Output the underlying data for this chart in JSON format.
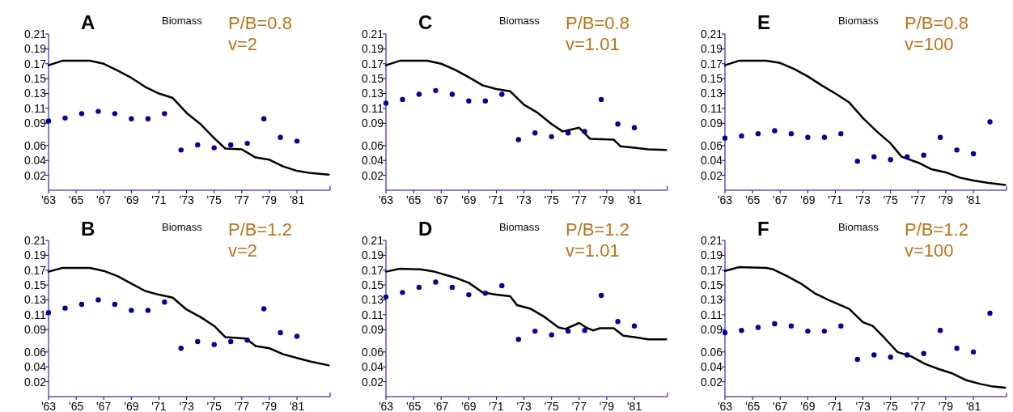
{
  "chart_data": [
    {
      "type": "line",
      "title": "A",
      "annotations": [
        "Biomass",
        "P/B=0.8",
        "v=2"
      ],
      "xlim": [
        1963,
        1983.4
      ],
      "ylim": [
        0,
        0.21
      ],
      "xticks": [
        {
          "value": 1963,
          "label": "'63"
        },
        {
          "value": 1965,
          "label": "'65"
        },
        {
          "value": 1967,
          "label": "'67"
        },
        {
          "value": 1969,
          "label": "'69"
        },
        {
          "value": 1971,
          "label": "'71"
        },
        {
          "value": 1973,
          "label": "'73"
        },
        {
          "value": 1975,
          "label": "'75"
        },
        {
          "value": 1977,
          "label": "'77"
        },
        {
          "value": 1979,
          "label": "'79"
        },
        {
          "value": 1981,
          "label": "'81"
        }
      ],
      "yticks": [
        0.02,
        0.04,
        0.06,
        0.09,
        0.11,
        0.13,
        0.15,
        0.17,
        0.19,
        0.21
      ],
      "series": [
        {
          "type": "line",
          "color": "#000000",
          "x": [
            1963,
            1964,
            1966,
            1967,
            1968,
            1969,
            1970,
            1971,
            1972,
            1973,
            1974,
            1975,
            1975.8,
            1977,
            1978,
            1979,
            1980,
            1981,
            1982,
            1983.3
          ],
          "values": [
            0.168,
            0.174,
            0.174,
            0.17,
            0.161,
            0.151,
            0.139,
            0.13,
            0.124,
            0.104,
            0.089,
            0.07,
            0.056,
            0.055,
            0.044,
            0.041,
            0.032,
            0.026,
            0.023,
            0.021
          ]
        },
        {
          "type": "scatter",
          "color": "#000099",
          "x": [
            1963,
            1964.2,
            1965.4,
            1966.6,
            1967.8,
            1969,
            1970.2,
            1971.4,
            1972.6,
            1973.8,
            1975,
            1976.2,
            1977.4,
            1978.6,
            1979.8,
            1981
          ],
          "values": [
            0.093,
            0.097,
            0.103,
            0.106,
            0.103,
            0.096,
            0.096,
            0.103,
            0.054,
            0.061,
            0.057,
            0.061,
            0.063,
            0.096,
            0.071,
            0.066
          ]
        }
      ]
    },
    {
      "type": "line",
      "title": "C",
      "annotations": [
        "Biomass",
        "P/B=0.8",
        "v=1.01"
      ],
      "xlim": [
        1963,
        1983.4
      ],
      "ylim": [
        0,
        0.21
      ],
      "xticks": [
        {
          "value": 1963,
          "label": "'63"
        },
        {
          "value": 1965,
          "label": "'65"
        },
        {
          "value": 1967,
          "label": "'67"
        },
        {
          "value": 1969,
          "label": "'69"
        },
        {
          "value": 1971,
          "label": "'71"
        },
        {
          "value": 1973,
          "label": "'73"
        },
        {
          "value": 1975,
          "label": "'75"
        },
        {
          "value": 1977,
          "label": "'77"
        },
        {
          "value": 1979,
          "label": "'79"
        },
        {
          "value": 1981,
          "label": "'81"
        }
      ],
      "yticks": [
        0.02,
        0.04,
        0.06,
        0.09,
        0.11,
        0.13,
        0.15,
        0.17,
        0.19,
        0.21
      ],
      "series": [
        {
          "type": "line",
          "color": "#000000",
          "x": [
            1963,
            1964,
            1966,
            1967,
            1968,
            1969,
            1970,
            1971,
            1972,
            1973,
            1974,
            1975,
            1975.8,
            1976.3,
            1977,
            1977.8,
            1979.5,
            1980,
            1981,
            1982,
            1983.3
          ],
          "values": [
            0.168,
            0.174,
            0.174,
            0.17,
            0.162,
            0.152,
            0.141,
            0.136,
            0.133,
            0.115,
            0.104,
            0.089,
            0.079,
            0.081,
            0.084,
            0.069,
            0.068,
            0.059,
            0.057,
            0.055,
            0.054
          ]
        },
        {
          "type": "scatter",
          "color": "#000099",
          "x": [
            1963,
            1964.2,
            1965.4,
            1966.6,
            1967.8,
            1969,
            1970.2,
            1971.4,
            1972.6,
            1973.8,
            1975,
            1976.2,
            1977.4,
            1978.6,
            1979.8,
            1981
          ],
          "values": [
            0.117,
            0.122,
            0.129,
            0.134,
            0.129,
            0.12,
            0.12,
            0.129,
            0.068,
            0.077,
            0.072,
            0.077,
            0.079,
            0.122,
            0.089,
            0.084
          ]
        }
      ]
    },
    {
      "type": "line",
      "title": "E",
      "annotations": [
        "Biomass",
        "P/B=0.8",
        "v=100"
      ],
      "xlim": [
        1963,
        1983.4
      ],
      "ylim": [
        0,
        0.21
      ],
      "xticks": [
        {
          "value": 1963,
          "label": "'63"
        },
        {
          "value": 1965,
          "label": "'65"
        },
        {
          "value": 1967,
          "label": "'67"
        },
        {
          "value": 1969,
          "label": "'69"
        },
        {
          "value": 1971,
          "label": "'71"
        },
        {
          "value": 1973,
          "label": "'73"
        },
        {
          "value": 1975,
          "label": "'75"
        },
        {
          "value": 1977,
          "label": "'77"
        },
        {
          "value": 1979,
          "label": "'79"
        },
        {
          "value": 1981,
          "label": "'81"
        }
      ],
      "yticks": [
        0.02,
        0.04,
        0.06,
        0.09,
        0.11,
        0.13,
        0.15,
        0.17,
        0.19,
        0.21
      ],
      "series": [
        {
          "type": "line",
          "color": "#000000",
          "x": [
            1963,
            1964,
            1966,
            1967,
            1968,
            1969,
            1970,
            1971,
            1972,
            1973,
            1974,
            1975,
            1975.8,
            1977,
            1978,
            1979,
            1980,
            1981,
            1982,
            1983.3
          ],
          "values": [
            0.168,
            0.174,
            0.174,
            0.171,
            0.163,
            0.153,
            0.141,
            0.13,
            0.118,
            0.097,
            0.079,
            0.063,
            0.045,
            0.037,
            0.028,
            0.024,
            0.017,
            0.013,
            0.01,
            0.007
          ]
        },
        {
          "type": "scatter",
          "color": "#000099",
          "x": [
            1963,
            1964.2,
            1965.4,
            1966.6,
            1967.8,
            1969,
            1970.2,
            1971.4,
            1972.6,
            1973.8,
            1975,
            1976.2,
            1977.4,
            1978.6,
            1979.8,
            1981,
            1982.2
          ],
          "values": [
            0.07,
            0.073,
            0.076,
            0.08,
            0.076,
            0.071,
            0.071,
            0.076,
            0.039,
            0.045,
            0.041,
            0.045,
            0.047,
            0.071,
            0.054,
            0.049,
            0.092
          ]
        }
      ]
    },
    {
      "type": "line",
      "title": "B",
      "annotations": [
        "Biomass",
        "P/B=1.2",
        "v=2"
      ],
      "xlim": [
        1963,
        1983.4
      ],
      "ylim": [
        0,
        0.21
      ],
      "xticks": [
        {
          "value": 1963,
          "label": "'63"
        },
        {
          "value": 1965,
          "label": "'65"
        },
        {
          "value": 1967,
          "label": "'67"
        },
        {
          "value": 1969,
          "label": "'69"
        },
        {
          "value": 1971,
          "label": "'71"
        },
        {
          "value": 1973,
          "label": "'73"
        },
        {
          "value": 1975,
          "label": "'75"
        },
        {
          "value": 1977,
          "label": "'77"
        },
        {
          "value": 1979,
          "label": "'79"
        },
        {
          "value": 1981,
          "label": "'81"
        }
      ],
      "yticks": [
        0.02,
        0.04,
        0.06,
        0.09,
        0.11,
        0.13,
        0.15,
        0.17,
        0.19,
        0.21
      ],
      "series": [
        {
          "type": "line",
          "color": "#000000",
          "x": [
            1963,
            1964,
            1966,
            1967,
            1968,
            1969,
            1970,
            1971,
            1972,
            1973,
            1974,
            1975,
            1975.8,
            1977.3,
            1978,
            1979,
            1980,
            1981,
            1982,
            1983.3
          ],
          "values": [
            0.168,
            0.173,
            0.173,
            0.169,
            0.162,
            0.152,
            0.142,
            0.137,
            0.133,
            0.117,
            0.107,
            0.095,
            0.08,
            0.078,
            0.068,
            0.065,
            0.057,
            0.052,
            0.047,
            0.042
          ]
        },
        {
          "type": "scatter",
          "color": "#000099",
          "x": [
            1963,
            1964.2,
            1965.4,
            1966.6,
            1967.8,
            1969,
            1970.2,
            1971.4,
            1972.6,
            1973.8,
            1975,
            1976.2,
            1977.4,
            1978.6,
            1979.8,
            1981
          ],
          "values": [
            0.113,
            0.119,
            0.124,
            0.13,
            0.124,
            0.116,
            0.116,
            0.127,
            0.065,
            0.074,
            0.07,
            0.074,
            0.076,
            0.118,
            0.086,
            0.081
          ]
        }
      ]
    },
    {
      "type": "line",
      "title": "D",
      "annotations": [
        "Biomass",
        "P/B=1.2",
        "v=1.01"
      ],
      "xlim": [
        1963,
        1983.4
      ],
      "ylim": [
        0,
        0.21
      ],
      "xticks": [
        {
          "value": 1963,
          "label": "'63"
        },
        {
          "value": 1965,
          "label": "'65"
        },
        {
          "value": 1967,
          "label": "'67"
        },
        {
          "value": 1969,
          "label": "'69"
        },
        {
          "value": 1971,
          "label": "'71"
        },
        {
          "value": 1973,
          "label": "'73"
        },
        {
          "value": 1975,
          "label": "'75"
        },
        {
          "value": 1977,
          "label": "'77"
        },
        {
          "value": 1979,
          "label": "'79"
        },
        {
          "value": 1981,
          "label": "'81"
        }
      ],
      "yticks": [
        0.02,
        0.04,
        0.06,
        0.09,
        0.11,
        0.13,
        0.15,
        0.17,
        0.19,
        0.21
      ],
      "series": [
        {
          "type": "line",
          "color": "#000000",
          "x": [
            1963,
            1964,
            1965.5,
            1966.5,
            1968,
            1969,
            1970,
            1971,
            1972,
            1972.5,
            1973.5,
            1974.5,
            1975.5,
            1976,
            1977,
            1977.5,
            1978,
            1978.5,
            1979.5,
            1980.2,
            1981,
            1982,
            1983.3
          ],
          "values": [
            0.168,
            0.172,
            0.171,
            0.168,
            0.16,
            0.153,
            0.14,
            0.137,
            0.135,
            0.123,
            0.118,
            0.107,
            0.093,
            0.091,
            0.099,
            0.093,
            0.089,
            0.092,
            0.092,
            0.082,
            0.08,
            0.077,
            0.077
          ]
        },
        {
          "type": "scatter",
          "color": "#000099",
          "x": [
            1963,
            1964.2,
            1965.4,
            1966.6,
            1967.8,
            1969,
            1970.2,
            1971.4,
            1972.6,
            1973.8,
            1975,
            1976.2,
            1977.4,
            1978.6,
            1979.8,
            1981
          ],
          "values": [
            0.134,
            0.14,
            0.147,
            0.154,
            0.147,
            0.137,
            0.139,
            0.149,
            0.077,
            0.088,
            0.083,
            0.088,
            0.089,
            0.136,
            0.101,
            0.095
          ]
        }
      ]
    },
    {
      "type": "line",
      "title": "F",
      "annotations": [
        "Biomass",
        "P/B=1.2",
        "v=100"
      ],
      "xlim": [
        1963,
        1983.4
      ],
      "ylim": [
        0,
        0.21
      ],
      "xticks": [
        {
          "value": 1963,
          "label": "'63"
        },
        {
          "value": 1965,
          "label": "'65"
        },
        {
          "value": 1967,
          "label": "'67"
        },
        {
          "value": 1969,
          "label": "'69"
        },
        {
          "value": 1971,
          "label": "'71"
        },
        {
          "value": 1973,
          "label": "'73"
        },
        {
          "value": 1975,
          "label": "'75"
        },
        {
          "value": 1977,
          "label": "'77"
        },
        {
          "value": 1979,
          "label": "'79"
        },
        {
          "value": 1981,
          "label": "'81"
        }
      ],
      "yticks": [
        0.02,
        0.04,
        0.06,
        0.09,
        0.11,
        0.13,
        0.15,
        0.17,
        0.19,
        0.21
      ],
      "series": [
        {
          "type": "line",
          "color": "#000000",
          "x": [
            1963,
            1964,
            1966,
            1966.5,
            1967.5,
            1968.5,
            1969.5,
            1970.5,
            1971.5,
            1972,
            1973,
            1973.7,
            1974.5,
            1975.5,
            1976.5,
            1977.5,
            1978.5,
            1979.5,
            1980.5,
            1981.5,
            1982.3,
            1983.3
          ],
          "values": [
            0.169,
            0.174,
            0.173,
            0.171,
            0.162,
            0.152,
            0.139,
            0.13,
            0.122,
            0.118,
            0.1,
            0.095,
            0.08,
            0.06,
            0.054,
            0.044,
            0.037,
            0.031,
            0.022,
            0.017,
            0.014,
            0.012
          ]
        },
        {
          "type": "scatter",
          "color": "#000099",
          "x": [
            1963,
            1964.2,
            1965.4,
            1966.6,
            1967.8,
            1969,
            1970.2,
            1971.4,
            1972.6,
            1973.8,
            1975,
            1976.2,
            1977.4,
            1978.6,
            1979.8,
            1981,
            1982.2
          ],
          "values": [
            0.086,
            0.089,
            0.093,
            0.098,
            0.095,
            0.088,
            0.088,
            0.095,
            0.05,
            0.056,
            0.053,
            0.056,
            0.058,
            0.089,
            0.065,
            0.06,
            0.112
          ]
        }
      ]
    }
  ]
}
